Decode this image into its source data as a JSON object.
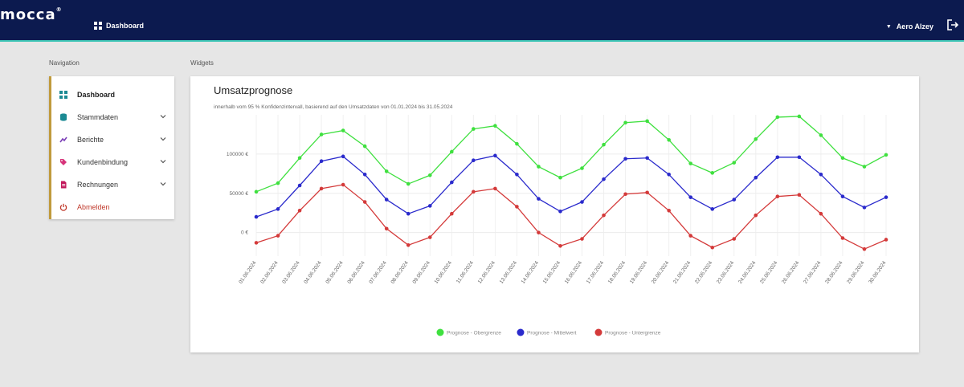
{
  "header": {
    "logo": "mocca",
    "nav_label": "Dashboard",
    "user_name": "Aero Alzey"
  },
  "sections": {
    "navigation": "Navigation",
    "widgets": "Widgets"
  },
  "sidebar": {
    "items": [
      {
        "label": "Dashboard",
        "icon": "dashboard-icon",
        "active": true
      },
      {
        "label": "Stammdaten",
        "icon": "database-icon",
        "expandable": true
      },
      {
        "label": "Berichte",
        "icon": "chart-icon",
        "expandable": true
      },
      {
        "label": "Kundenbindung",
        "icon": "tag-icon",
        "expandable": true
      },
      {
        "label": "Rechnungen",
        "icon": "invoice-icon",
        "expandable": true
      },
      {
        "label": "Abmelden",
        "icon": "power-icon"
      }
    ]
  },
  "widget": {
    "title": "Umsatzprognose",
    "subtitle": "innerhalb vom 95 % Konfidenzintervall, basierend auf den Umsatzdaten von 01.01.2024 bis 31.05.2024"
  },
  "colors": {
    "topbar": "#0c1a4f",
    "accent": "#3fc6b6",
    "upper": "#3fe03f",
    "mean": "#2a2acc",
    "lower": "#d43a3a"
  },
  "chart_data": {
    "type": "line",
    "x": [
      "01.06.2024",
      "02.06.2024",
      "03.06.2024",
      "04.06.2024",
      "05.06.2024",
      "06.06.2024",
      "07.06.2024",
      "08.06.2024",
      "09.06.2024",
      "10.06.2024",
      "11.06.2024",
      "12.06.2024",
      "13.06.2024",
      "14.06.2024",
      "15.06.2024",
      "16.06.2024",
      "17.06.2024",
      "18.06.2024",
      "19.06.2024",
      "20.06.2024",
      "21.06.2024",
      "22.06.2024",
      "23.06.2024",
      "24.06.2024",
      "25.06.2024",
      "26.06.2024",
      "27.06.2024",
      "28.06.2024",
      "29.06.2024",
      "30.06.2024"
    ],
    "y_ticks": [
      {
        "value": 0,
        "label": "0 €"
      },
      {
        "value": 50000,
        "label": "50000 €"
      },
      {
        "value": 100000,
        "label": "100000 €"
      }
    ],
    "ylim": [
      -30000,
      150000
    ],
    "grid": true,
    "legend_position": "bottom",
    "series": [
      {
        "name": "Prognose - Obergrenze",
        "color": "#3fe03f",
        "values": [
          52000,
          63000,
          95000,
          125000,
          130000,
          110000,
          78000,
          62000,
          73000,
          103000,
          132000,
          136000,
          113000,
          84000,
          70000,
          82000,
          112000,
          140000,
          142000,
          118000,
          88000,
          76000,
          89000,
          119000,
          147000,
          148000,
          124000,
          95000,
          84000,
          99000
        ]
      },
      {
        "name": "Prognose - Mittelwert",
        "color": "#2a2acc",
        "values": [
          20000,
          30000,
          60000,
          91000,
          97000,
          74000,
          42000,
          24000,
          34000,
          64000,
          92000,
          98000,
          74000,
          43000,
          27000,
          39000,
          68000,
          94000,
          95000,
          74000,
          45000,
          30000,
          42000,
          70000,
          96000,
          96000,
          74000,
          46000,
          32000,
          45000
        ]
      },
      {
        "name": "Prognose - Untergrenze",
        "color": "#d43a3a",
        "values": [
          -13000,
          -4000,
          28000,
          56000,
          61000,
          39000,
          5000,
          -16000,
          -6000,
          24000,
          52000,
          56000,
          33000,
          0,
          -17000,
          -8000,
          22000,
          49000,
          51000,
          28000,
          -4000,
          -19000,
          -8000,
          22000,
          46000,
          48000,
          24000,
          -7000,
          -21000,
          -9000
        ]
      }
    ]
  }
}
